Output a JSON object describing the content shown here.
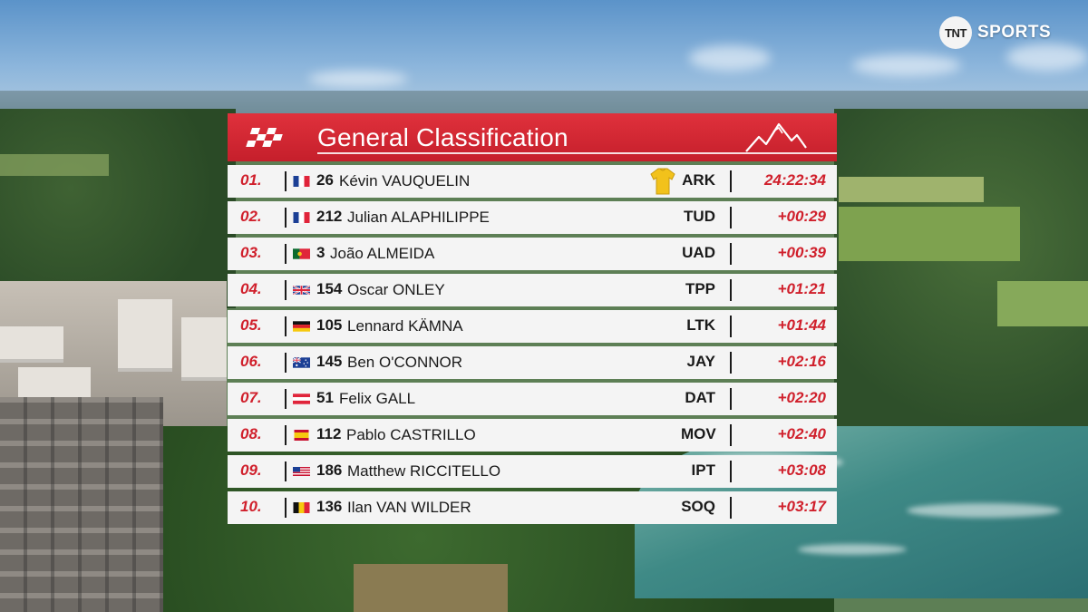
{
  "broadcaster": {
    "logo_mark": "TNT",
    "logo_text": "SPORTS"
  },
  "panel": {
    "title": "General Classification",
    "icons": {
      "left": "checkered-flag-icon",
      "right": "mountain-icon"
    }
  },
  "colors": {
    "accent": "#d0202c",
    "header_red": "#d32633",
    "row_bg": "#f4f4f4",
    "jersey": "#f2c21b"
  },
  "rows": [
    {
      "pos": "01.",
      "flag": "FR",
      "num": "26",
      "name": "Kévin VAUQUELIN",
      "team": "ARK",
      "time": "24:22:34",
      "leader_jersey": true
    },
    {
      "pos": "02.",
      "flag": "FR",
      "num": "212",
      "name": "Julian ALAPHILIPPE",
      "team": "TUD",
      "time": "+00:29"
    },
    {
      "pos": "03.",
      "flag": "PT",
      "num": "3",
      "name": "João ALMEIDA",
      "team": "UAD",
      "time": "+00:39"
    },
    {
      "pos": "04.",
      "flag": "GB",
      "num": "154",
      "name": "Oscar ONLEY",
      "team": "TPP",
      "time": "+01:21"
    },
    {
      "pos": "05.",
      "flag": "DE",
      "num": "105",
      "name": "Lennard KÄMNA",
      "team": "LTK",
      "time": "+01:44"
    },
    {
      "pos": "06.",
      "flag": "AU",
      "num": "145",
      "name": "Ben O'CONNOR",
      "team": "JAY",
      "time": "+02:16"
    },
    {
      "pos": "07.",
      "flag": "AT",
      "num": "51",
      "name": "Felix GALL",
      "team": "DAT",
      "time": "+02:20"
    },
    {
      "pos": "08.",
      "flag": "ES",
      "num": "112",
      "name": "Pablo CASTRILLO",
      "team": "MOV",
      "time": "+02:40"
    },
    {
      "pos": "09.",
      "flag": "US",
      "num": "186",
      "name": "Matthew RICCITELLO",
      "team": "IPT",
      "time": "+03:08"
    },
    {
      "pos": "10.",
      "flag": "BE",
      "num": "136",
      "name": "Ilan VAN WILDER",
      "team": "SOQ",
      "time": "+03:17"
    }
  ]
}
